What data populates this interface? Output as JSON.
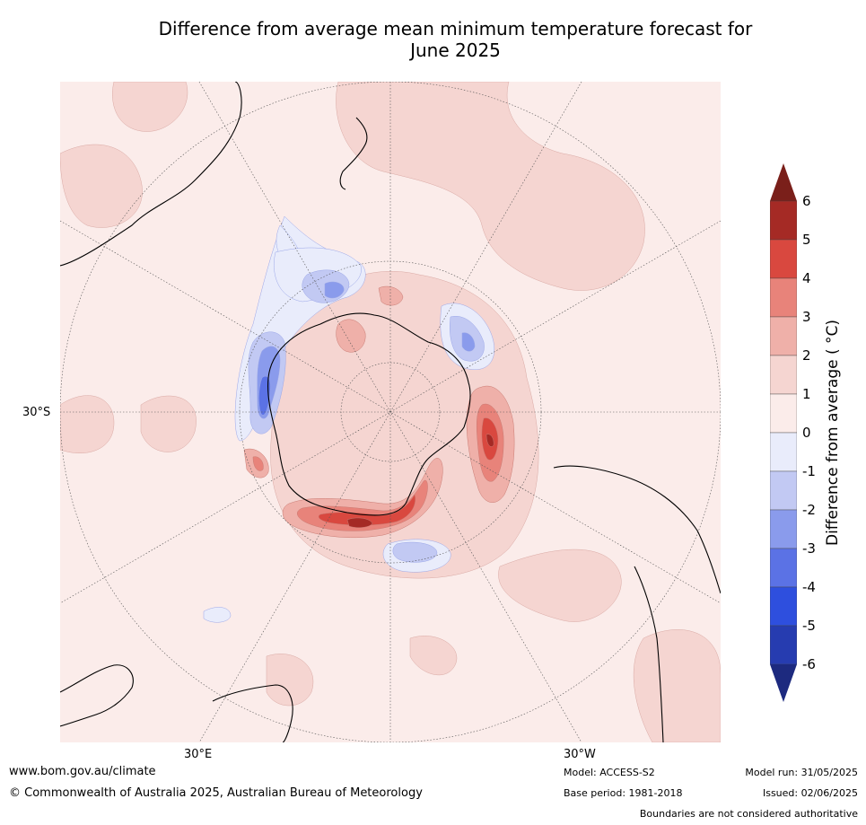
{
  "title_line1": "Difference from average mean minimum temperature forecast for",
  "title_line2": "June 2025",
  "map": {
    "projection": "south-polar stereographic",
    "lat_label": "30°S",
    "lon_labels": [
      "30°E",
      "30°W"
    ],
    "background_color": "#fbecea"
  },
  "colorbar": {
    "label": "Difference from average ( °C)",
    "ticks": [
      "6",
      "5",
      "4",
      "3",
      "2",
      "1",
      "0",
      "-1",
      "-2",
      "-3",
      "-4",
      "-5",
      "-6"
    ],
    "colors_top_to_bottom": [
      "#a52a25",
      "#d9483f",
      "#e8837a",
      "#efb0a9",
      "#f5d5d1",
      "#fbecea",
      "#e9ecfb",
      "#c2c9f3",
      "#8a9bec",
      "#5b72e5",
      "#2e4fde",
      "#263cb0"
    ],
    "over_color": "#7a1f1a",
    "under_color": "#1d2a7f"
  },
  "footer": {
    "website": "www.bom.gov.au/climate",
    "copyright": "© Commonwealth of Australia 2025, Australian Bureau of Meteorology",
    "model": "Model: ACCESS-S2",
    "base_period": "Base period: 1981-2018",
    "model_run": "Model run: 31/05/2025",
    "issued": "Issued: 02/06/2025",
    "disclaimer": "Boundaries are not considered authoritative"
  }
}
